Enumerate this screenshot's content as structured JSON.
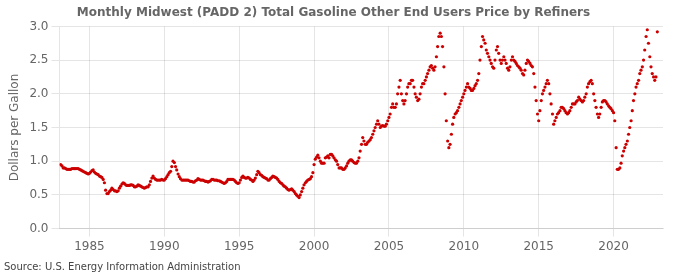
{
  "chart_data": {
    "type": "scatter",
    "title": "Monthly Midwest (PADD 2) Total Gasoline Other End Users Price by Refiners",
    "ylabel": "Dollars per Gallon",
    "annotations": [
      "Source: U.S. Energy Information Administration"
    ],
    "color": "#cc0000",
    "grid": true,
    "xlim": [
      1983.0,
      2023.3
    ],
    "xticks": [
      1985,
      1990,
      1995,
      2000,
      2005,
      2010,
      2015,
      2020
    ],
    "ylim": [
      0.0,
      3.0
    ],
    "yticks": [
      {
        "value": 0.0,
        "label": "0.0"
      },
      0.5,
      {
        "value": 1.0,
        "label": "1.0"
      },
      1.5,
      {
        "value": 2.0,
        "label": "2.0"
      },
      2.5,
      {
        "value": 3.0,
        "label": "3.0"
      }
    ],
    "x": [
      1983.08,
      1983.17,
      1983.25,
      1983.33,
      1983.42,
      1983.5,
      1983.58,
      1983.67,
      1983.75,
      1983.83,
      1983.92,
      1984.0,
      1984.08,
      1984.17,
      1984.25,
      1984.33,
      1984.42,
      1984.5,
      1984.58,
      1984.67,
      1984.75,
      1984.83,
      1984.92,
      1985.0,
      1985.08,
      1985.17,
      1985.25,
      1985.33,
      1985.42,
      1985.5,
      1985.58,
      1985.67,
      1985.75,
      1985.83,
      1985.92,
      1986.0,
      1986.08,
      1986.17,
      1986.25,
      1986.33,
      1986.42,
      1986.5,
      1986.58,
      1986.67,
      1986.75,
      1986.83,
      1986.92,
      1987.0,
      1987.08,
      1987.17,
      1987.25,
      1987.33,
      1987.42,
      1987.5,
      1987.58,
      1987.67,
      1987.75,
      1987.83,
      1987.92,
      1988.0,
      1988.08,
      1988.17,
      1988.25,
      1988.33,
      1988.42,
      1988.5,
      1988.58,
      1988.67,
      1988.75,
      1988.83,
      1988.92,
      1989.0,
      1989.08,
      1989.17,
      1989.25,
      1989.33,
      1989.42,
      1989.5,
      1989.58,
      1989.67,
      1989.75,
      1989.83,
      1989.92,
      1990.0,
      1990.08,
      1990.17,
      1990.25,
      1990.33,
      1990.42,
      1990.5,
      1990.58,
      1990.67,
      1990.75,
      1990.83,
      1990.92,
      1991.0,
      1991.08,
      1991.17,
      1991.25,
      1991.33,
      1991.42,
      1991.5,
      1991.58,
      1991.67,
      1991.75,
      1991.83,
      1991.92,
      1992.0,
      1992.08,
      1992.17,
      1992.25,
      1992.33,
      1992.42,
      1992.5,
      1992.58,
      1992.67,
      1992.75,
      1992.83,
      1992.92,
      1993.0,
      1993.08,
      1993.17,
      1993.25,
      1993.33,
      1993.42,
      1993.5,
      1993.58,
      1993.67,
      1993.75,
      1993.83,
      1993.92,
      1994.0,
      1994.08,
      1994.17,
      1994.25,
      1994.33,
      1994.42,
      1994.5,
      1994.58,
      1994.67,
      1994.75,
      1994.83,
      1994.92,
      1995.0,
      1995.08,
      1995.17,
      1995.25,
      1995.33,
      1995.42,
      1995.5,
      1995.58,
      1995.67,
      1995.75,
      1995.83,
      1995.92,
      1996.0,
      1996.08,
      1996.17,
      1996.25,
      1996.33,
      1996.42,
      1996.5,
      1996.58,
      1996.67,
      1996.75,
      1996.83,
      1996.92,
      1997.0,
      1997.08,
      1997.17,
      1997.25,
      1997.33,
      1997.42,
      1997.5,
      1997.58,
      1997.67,
      1997.75,
      1997.83,
      1997.92,
      1998.0,
      1998.08,
      1998.17,
      1998.25,
      1998.33,
      1998.42,
      1998.5,
      1998.58,
      1998.67,
      1998.75,
      1998.83,
      1998.92,
      1999.0,
      1999.08,
      1999.17,
      1999.25,
      1999.33,
      1999.42,
      1999.5,
      1999.58,
      1999.67,
      1999.75,
      1999.83,
      1999.92,
      2000.0,
      2000.08,
      2000.17,
      2000.25,
      2000.33,
      2000.42,
      2000.5,
      2000.58,
      2000.67,
      2000.75,
      2000.83,
      2000.92,
      2001.0,
      2001.08,
      2001.17,
      2001.25,
      2001.33,
      2001.42,
      2001.5,
      2001.58,
      2001.67,
      2001.75,
      2001.83,
      2001.92,
      2002.0,
      2002.08,
      2002.17,
      2002.25,
      2002.33,
      2002.42,
      2002.5,
      2002.58,
      2002.67,
      2002.75,
      2002.83,
      2002.92,
      2003.0,
      2003.08,
      2003.17,
      2003.25,
      2003.33,
      2003.42,
      2003.5,
      2003.58,
      2003.67,
      2003.75,
      2003.83,
      2003.92,
      2004.0,
      2004.08,
      2004.17,
      2004.25,
      2004.33,
      2004.42,
      2004.5,
      2004.58,
      2004.67,
      2004.75,
      2004.83,
      2004.92,
      2005.0,
      2005.08,
      2005.17,
      2005.25,
      2005.33,
      2005.42,
      2005.5,
      2005.58,
      2005.67,
      2005.75,
      2005.83,
      2005.92,
      2006.0,
      2006.08,
      2006.17,
      2006.25,
      2006.33,
      2006.42,
      2006.5,
      2006.58,
      2006.67,
      2006.75,
      2006.83,
      2006.92,
      2007.0,
      2007.08,
      2007.17,
      2007.25,
      2007.33,
      2007.42,
      2007.5,
      2007.58,
      2007.67,
      2007.75,
      2007.83,
      2007.92,
      2008.0,
      2008.08,
      2008.17,
      2008.25,
      2008.33,
      2008.42,
      2008.5,
      2008.58,
      2008.67,
      2008.75,
      2008.83,
      2008.92,
      2009.0,
      2009.08,
      2009.17,
      2009.25,
      2009.33,
      2009.42,
      2009.5,
      2009.58,
      2009.67,
      2009.75,
      2009.83,
      2009.92,
      2010.0,
      2010.08,
      2010.17,
      2010.25,
      2010.33,
      2010.42,
      2010.5,
      2010.58,
      2010.67,
      2010.75,
      2010.83,
      2010.92,
      2011.0,
      2011.08,
      2011.17,
      2011.25,
      2011.33,
      2011.42,
      2011.5,
      2011.58,
      2011.67,
      2011.75,
      2011.83,
      2011.92,
      2012.0,
      2012.08,
      2012.17,
      2012.25,
      2012.33,
      2012.42,
      2012.5,
      2012.58,
      2012.67,
      2012.75,
      2012.83,
      2012.92,
      2013.0,
      2013.08,
      2013.17,
      2013.25,
      2013.33,
      2013.42,
      2013.5,
      2013.58,
      2013.67,
      2013.75,
      2013.83,
      2013.92,
      2014.0,
      2014.08,
      2014.17,
      2014.25,
      2014.33,
      2014.42,
      2014.5,
      2014.58,
      2014.67,
      2014.75,
      2014.83,
      2014.92,
      2015.0,
      2015.08,
      2015.17,
      2015.25,
      2015.33,
      2015.42,
      2015.5,
      2015.58,
      2015.67,
      2015.75,
      2015.83,
      2015.92,
      2016.0,
      2016.08,
      2016.17,
      2016.25,
      2016.33,
      2016.42,
      2016.5,
      2016.58,
      2016.67,
      2016.75,
      2016.83,
      2016.92,
      2017.0,
      2017.08,
      2017.17,
      2017.25,
      2017.33,
      2017.42,
      2017.5,
      2017.58,
      2017.67,
      2017.75,
      2017.83,
      2017.92,
      2018.0,
      2018.08,
      2018.17,
      2018.25,
      2018.33,
      2018.42,
      2018.5,
      2018.58,
      2018.67,
      2018.75,
      2018.83,
      2018.92,
      2019.0,
      2019.08,
      2019.17,
      2019.25,
      2019.33,
      2019.42,
      2019.5,
      2019.58,
      2019.67,
      2019.75,
      2019.83,
      2019.92,
      2020.0,
      2020.08,
      2020.17,
      2020.25,
      2020.33,
      2020.42,
      2020.5,
      2020.58,
      2020.67,
      2020.75,
      2020.83,
      2020.92,
      2021.0,
      2021.08,
      2021.17,
      2021.25,
      2021.33,
      2021.42,
      2021.5,
      2021.58,
      2021.67,
      2021.75,
      2021.83,
      2021.92,
      2022.0,
      2022.08,
      2022.17,
      2022.25,
      2022.33,
      2022.42,
      2022.5,
      2022.58,
      2022.67,
      2022.75,
      2022.83,
      2022.92
    ],
    "values": [
      0.95,
      0.93,
      0.9,
      0.9,
      0.89,
      0.88,
      0.88,
      0.88,
      0.88,
      0.89,
      0.89,
      0.89,
      0.89,
      0.89,
      0.89,
      0.88,
      0.87,
      0.86,
      0.85,
      0.84,
      0.83,
      0.82,
      0.81,
      0.82,
      0.84,
      0.86,
      0.87,
      0.84,
      0.82,
      0.81,
      0.8,
      0.78,
      0.77,
      0.76,
      0.73,
      0.68,
      0.57,
      0.52,
      0.52,
      0.55,
      0.57,
      0.6,
      0.58,
      0.56,
      0.56,
      0.55,
      0.56,
      0.6,
      0.63,
      0.66,
      0.68,
      0.67,
      0.65,
      0.64,
      0.64,
      0.64,
      0.65,
      0.65,
      0.64,
      0.62,
      0.62,
      0.63,
      0.65,
      0.64,
      0.63,
      0.62,
      0.61,
      0.6,
      0.61,
      0.62,
      0.62,
      0.65,
      0.7,
      0.75,
      0.78,
      0.75,
      0.73,
      0.72,
      0.72,
      0.72,
      0.72,
      0.73,
      0.72,
      0.72,
      0.74,
      0.77,
      0.8,
      0.83,
      0.85,
      0.92,
      1.0,
      0.98,
      0.92,
      0.87,
      0.81,
      0.77,
      0.74,
      0.72,
      0.72,
      0.72,
      0.72,
      0.72,
      0.72,
      0.71,
      0.7,
      0.7,
      0.69,
      0.69,
      0.71,
      0.72,
      0.74,
      0.73,
      0.72,
      0.72,
      0.72,
      0.71,
      0.7,
      0.7,
      0.69,
      0.7,
      0.71,
      0.73,
      0.73,
      0.72,
      0.72,
      0.72,
      0.71,
      0.71,
      0.7,
      0.69,
      0.68,
      0.67,
      0.68,
      0.7,
      0.73,
      0.73,
      0.73,
      0.73,
      0.73,
      0.72,
      0.7,
      0.68,
      0.67,
      0.68,
      0.72,
      0.76,
      0.78,
      0.76,
      0.75,
      0.75,
      0.76,
      0.75,
      0.73,
      0.72,
      0.7,
      0.72,
      0.75,
      0.8,
      0.85,
      0.83,
      0.8,
      0.79,
      0.77,
      0.76,
      0.75,
      0.74,
      0.72,
      0.72,
      0.74,
      0.76,
      0.78,
      0.77,
      0.76,
      0.75,
      0.73,
      0.7,
      0.68,
      0.67,
      0.65,
      0.63,
      0.62,
      0.6,
      0.58,
      0.57,
      0.58,
      0.59,
      0.57,
      0.55,
      0.52,
      0.5,
      0.48,
      0.46,
      0.5,
      0.55,
      0.6,
      0.65,
      0.68,
      0.7,
      0.72,
      0.73,
      0.74,
      0.77,
      0.83,
      0.95,
      1.03,
      1.06,
      1.09,
      1.05,
      1.0,
      0.97,
      0.97,
      0.97,
      1.05,
      1.06,
      1.08,
      1.05,
      1.1,
      1.1,
      1.08,
      1.05,
      1.02,
      1.0,
      0.95,
      0.9,
      0.9,
      0.9,
      0.88,
      0.88,
      0.9,
      0.93,
      0.97,
      1.0,
      1.02,
      1.02,
      1.0,
      0.98,
      0.97,
      0.97,
      1.0,
      1.05,
      1.15,
      1.25,
      1.35,
      1.3,
      1.25,
      1.25,
      1.28,
      1.3,
      1.32,
      1.35,
      1.4,
      1.45,
      1.5,
      1.55,
      1.6,
      1.55,
      1.5,
      1.52,
      1.53,
      1.52,
      1.52,
      1.55,
      1.6,
      1.65,
      1.7,
      1.8,
      1.85,
      1.8,
      1.8,
      1.85,
      2.0,
      2.1,
      2.2,
      2.0,
      1.9,
      1.85,
      1.9,
      2.0,
      2.1,
      2.15,
      2.15,
      2.2,
      2.2,
      2.1,
      2.0,
      1.95,
      1.9,
      1.92,
      2.0,
      2.1,
      2.15,
      2.15,
      2.2,
      2.25,
      2.3,
      2.35,
      2.4,
      2.42,
      2.38,
      2.35,
      2.4,
      2.55,
      2.7,
      2.85,
      2.9,
      2.85,
      2.7,
      2.4,
      2.0,
      1.6,
      1.3,
      1.2,
      1.25,
      1.4,
      1.55,
      1.65,
      1.7,
      1.72,
      1.75,
      1.8,
      1.85,
      1.9,
      1.95,
      2.0,
      2.05,
      2.1,
      2.15,
      2.1,
      2.08,
      2.05,
      2.05,
      2.08,
      2.12,
      2.15,
      2.2,
      2.3,
      2.5,
      2.7,
      2.85,
      2.8,
      2.75,
      2.65,
      2.6,
      2.55,
      2.5,
      2.45,
      2.4,
      2.38,
      2.5,
      2.65,
      2.7,
      2.6,
      2.5,
      2.45,
      2.5,
      2.55,
      2.5,
      2.45,
      2.38,
      2.35,
      2.4,
      2.5,
      2.55,
      2.5,
      2.48,
      2.45,
      2.42,
      2.4,
      2.38,
      2.35,
      2.3,
      2.28,
      2.35,
      2.45,
      2.5,
      2.48,
      2.45,
      2.42,
      2.4,
      2.3,
      2.1,
      1.9,
      1.7,
      1.6,
      1.75,
      1.9,
      2.0,
      2.05,
      2.1,
      2.15,
      2.2,
      2.15,
      2.0,
      1.85,
      1.7,
      1.55,
      1.6,
      1.65,
      1.7,
      1.72,
      1.75,
      1.8,
      1.8,
      1.78,
      1.75,
      1.72,
      1.7,
      1.72,
      1.75,
      1.8,
      1.85,
      1.85,
      1.85,
      1.88,
      1.9,
      1.95,
      1.92,
      1.9,
      1.88,
      1.9,
      1.95,
      2.0,
      2.1,
      2.15,
      2.18,
      2.2,
      2.15,
      2.0,
      1.9,
      1.8,
      1.7,
      1.65,
      1.7,
      1.8,
      1.88,
      1.9,
      1.9,
      1.88,
      1.85,
      1.82,
      1.8,
      1.78,
      1.75,
      1.72,
      1.6,
      1.2,
      0.88,
      0.88,
      0.9,
      0.97,
      1.08,
      1.15,
      1.2,
      1.25,
      1.3,
      1.4,
      1.5,
      1.6,
      1.75,
      1.9,
      2.0,
      2.1,
      2.15,
      2.2,
      2.3,
      2.35,
      2.4,
      2.5,
      2.65,
      2.85,
      2.95,
      2.75,
      2.55,
      2.4,
      2.3,
      2.25,
      2.2,
      2.25,
      2.92
    ]
  }
}
